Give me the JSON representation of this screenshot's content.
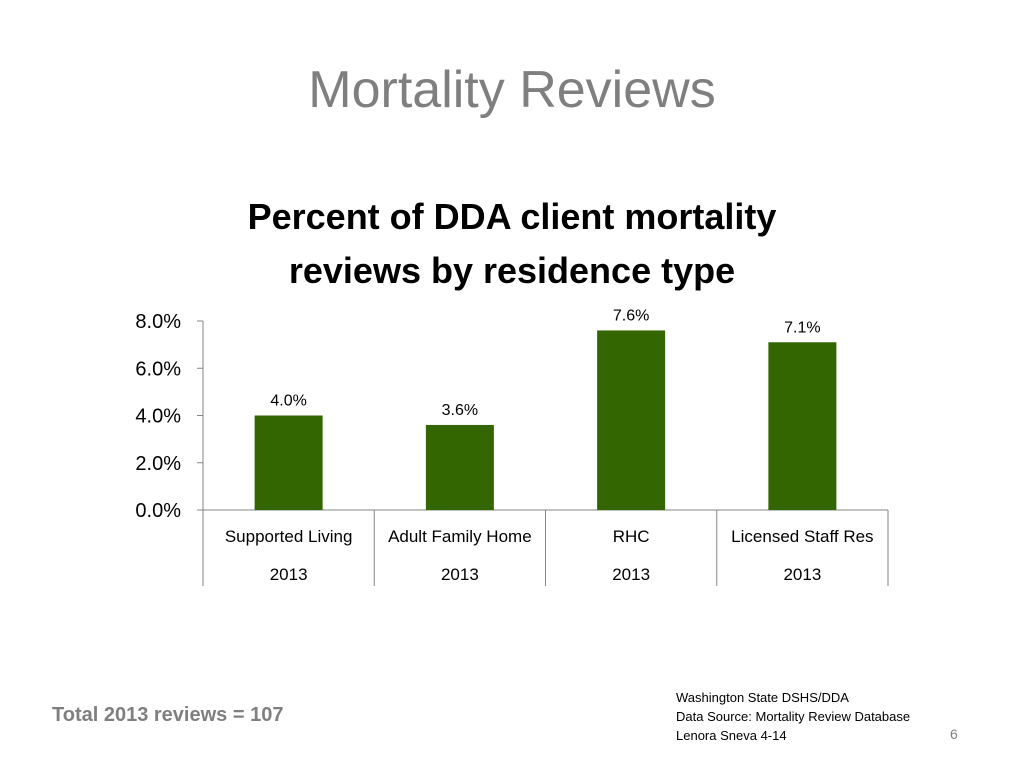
{
  "slide": {
    "title": "Mortality Reviews",
    "total_reviews": "Total 2013 reviews = 107",
    "source_lines": [
      "Washington State DSHS/DDA",
      "Data Source: Mortality Review Database",
      "Lenora Sneva 4-14"
    ],
    "page_number": "6"
  },
  "chart_data": {
    "type": "bar",
    "title": "Percent of DDA client mortality reviews by residence type",
    "title_lines": [
      "Percent of DDA client mortality",
      "reviews by residence type"
    ],
    "categories": [
      "Supported Living",
      "Adult Family Home",
      "RHC",
      "Licensed Staff Res"
    ],
    "year_labels": [
      "2013",
      "2013",
      "2013",
      "2013"
    ],
    "values": [
      4.0,
      3.6,
      7.6,
      7.1
    ],
    "data_labels": [
      "4.0%",
      "3.6%",
      "7.6%",
      "7.1%"
    ],
    "y_ticks": [
      0,
      2,
      4,
      6,
      8
    ],
    "y_tick_labels": [
      "0.0%",
      "2.0%",
      "4.0%",
      "6.0%",
      "8.0%"
    ],
    "ylim": [
      0,
      8
    ],
    "xlabel": "",
    "ylabel": "",
    "grid": false,
    "legend": "none",
    "bar_color": "#336600"
  }
}
